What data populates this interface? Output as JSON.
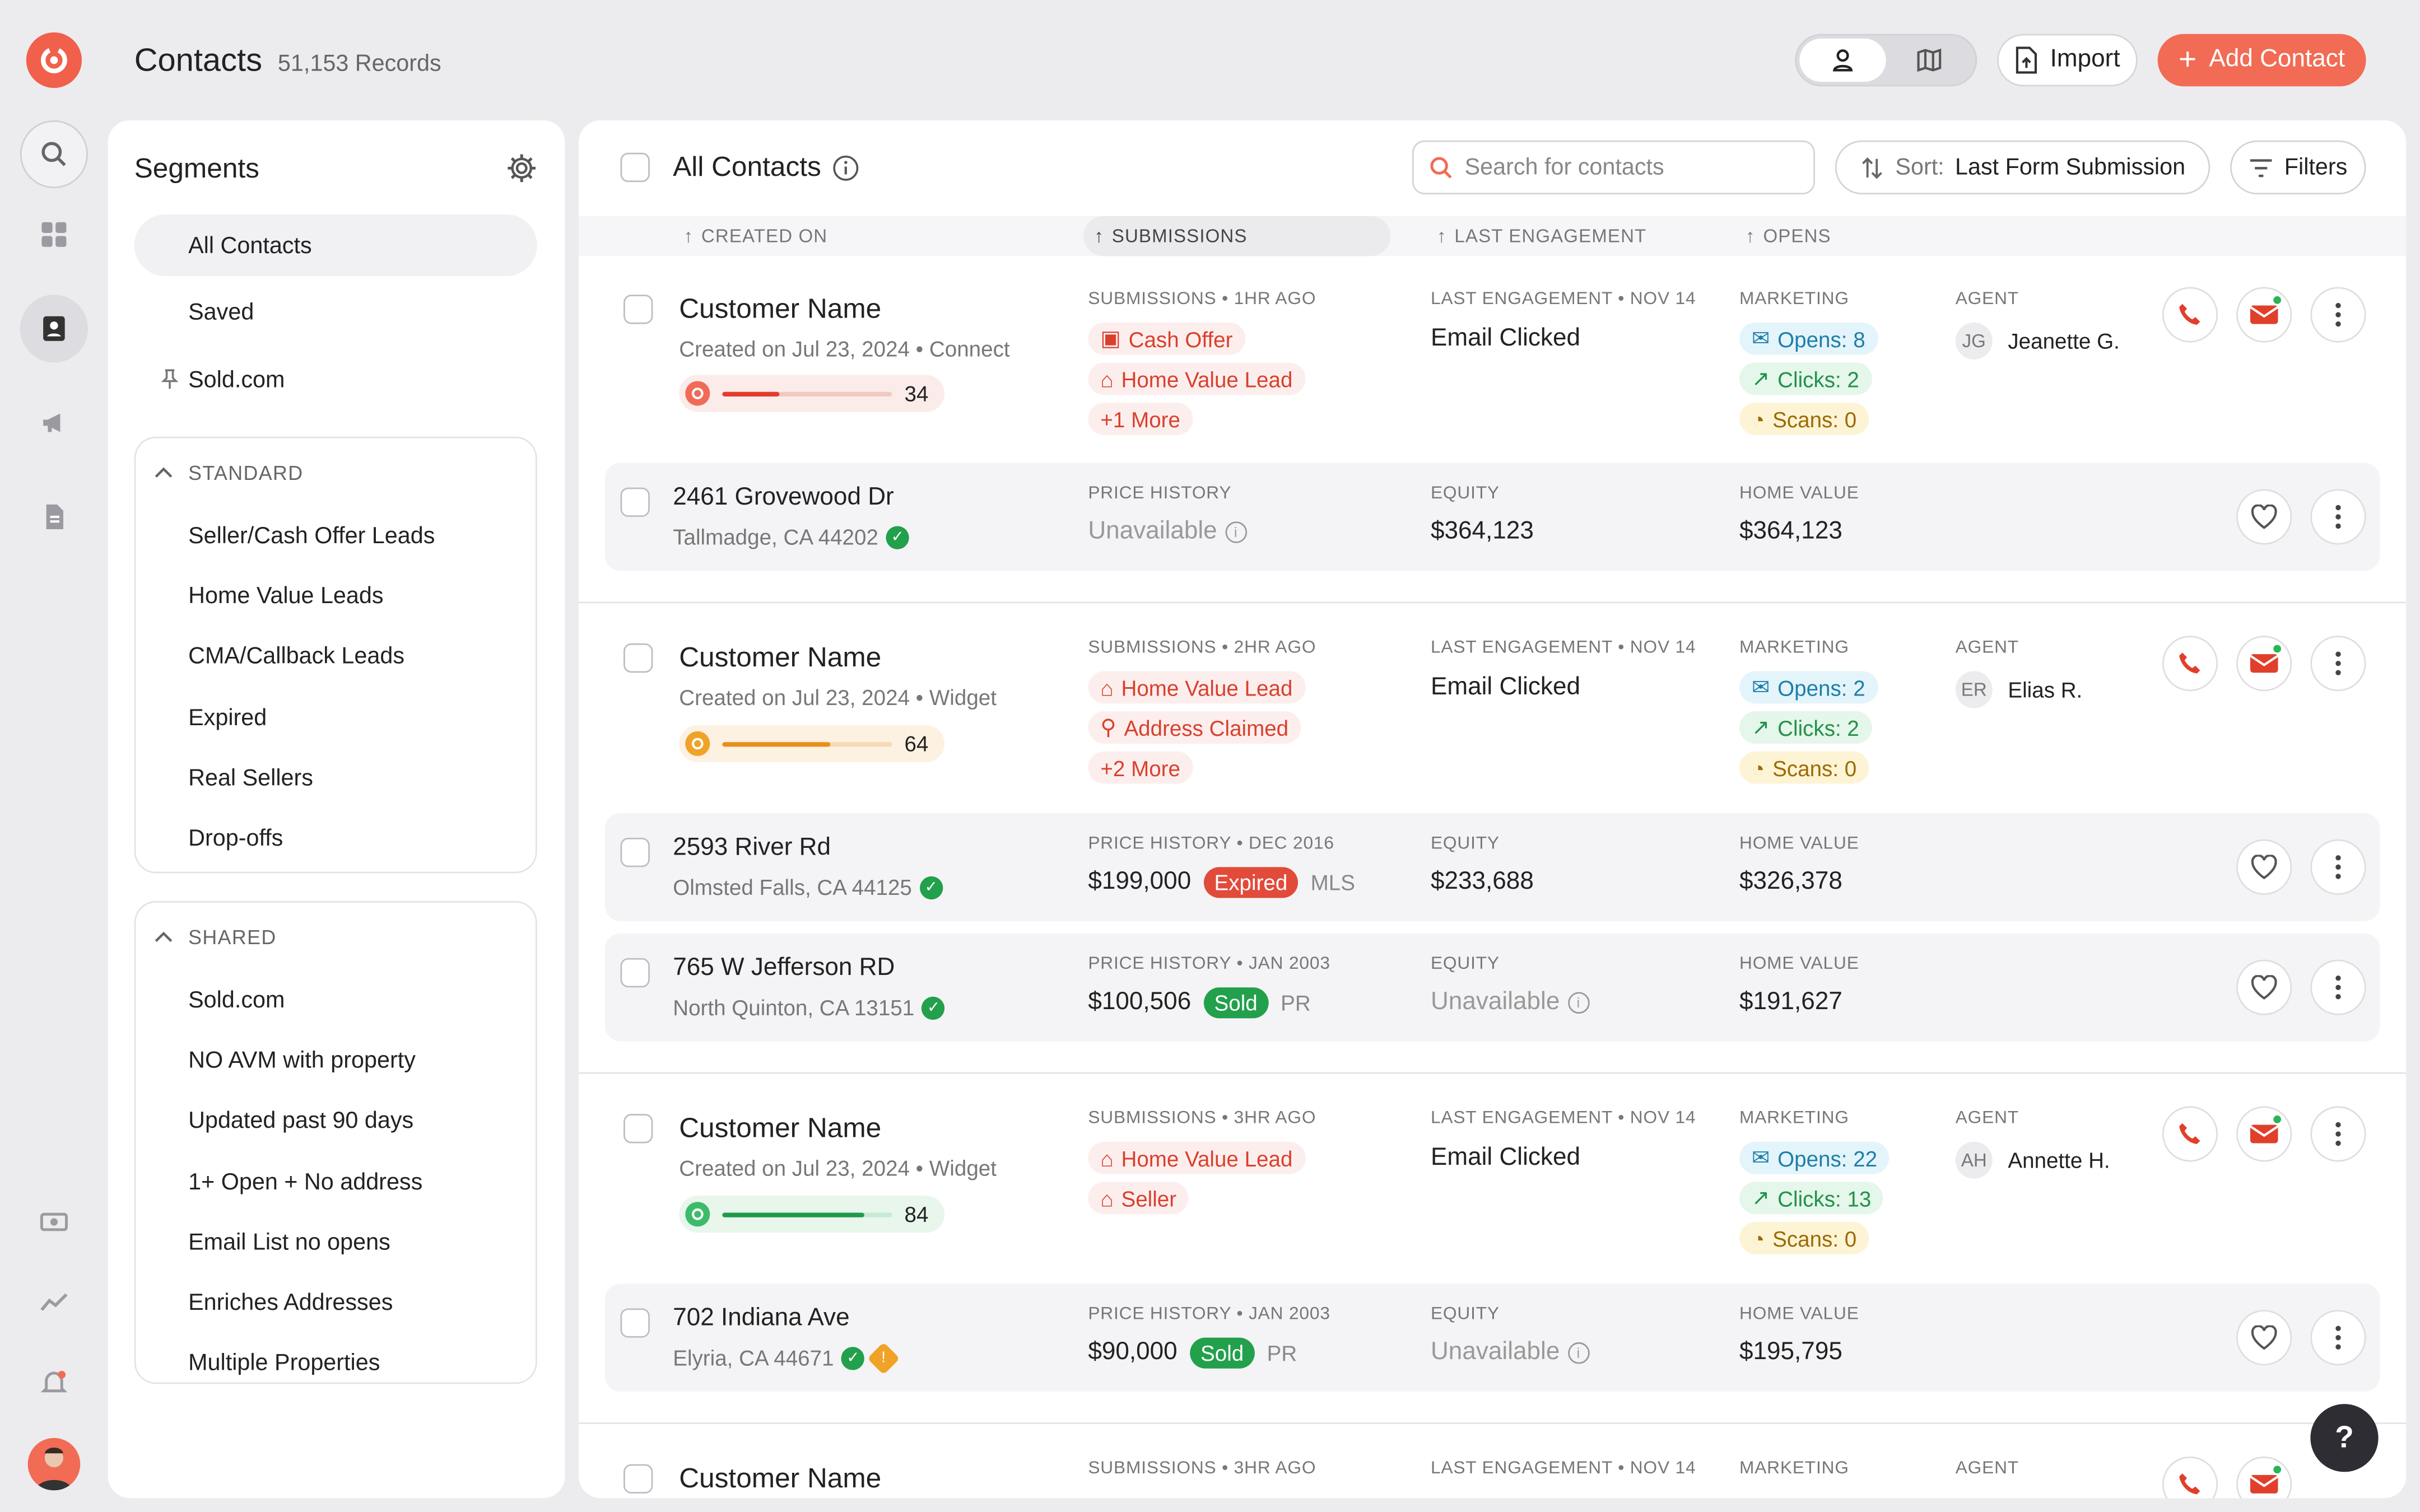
{
  "header": {
    "title": "Contacts",
    "records": "51,153 Records",
    "import_label": "Import",
    "add_label": "Add Contact"
  },
  "segments": {
    "title": "Segments",
    "top": [
      {
        "label": "All Contacts"
      },
      {
        "label": "Saved"
      },
      {
        "label": "Sold.com"
      }
    ],
    "standard": {
      "header": "STANDARD",
      "items": [
        "Seller/Cash Offer Leads",
        "Home Value Leads",
        "CMA/Callback Leads",
        "Expired",
        "Real Sellers",
        "Drop-offs"
      ]
    },
    "shared": {
      "header": "SHARED",
      "items": [
        "Sold.com",
        "NO AVM with property",
        "Updated past 90 days",
        "1+ Open + No address",
        "Email List no opens",
        "Enriches Addresses",
        "Multiple Properties"
      ]
    }
  },
  "main": {
    "title": "All Contacts",
    "search_placeholder": "Search for contacts",
    "sort_prefix": "Sort:",
    "sort_value": "Last Form Submission",
    "filters_label": "Filters",
    "columns": [
      "CREATED ON",
      "SUBMISSIONS",
      "LAST ENGAGEMENT",
      "OPENS"
    ]
  },
  "contacts": [
    {
      "name": "Customer Name",
      "created": "Created on Jul 23, 2024 • Connect",
      "score": "34",
      "score_fraction": 0.34,
      "sub_header": "SUBMISSIONS • 1HR AGO",
      "subs": [
        "Cash Offer",
        "Home Value Lead",
        "+1 More"
      ],
      "eng_header": "LAST ENGAGEMENT • NOV 14",
      "eng": "Email Clicked",
      "mkt_header": "MARKETING",
      "opens": "Opens: 8",
      "clicks": "Clicks: 2",
      "scans": "Scans: 0",
      "agent_header": "AGENT",
      "agent_initials": "JG",
      "agent": "Jeanette G."
    },
    {
      "name": "Customer Name",
      "created": "Created on Jul 23, 2024 • Widget",
      "score": "64",
      "score_fraction": 0.64,
      "sub_header": "SUBMISSIONS • 2HR AGO",
      "subs": [
        "Home Value Lead",
        "Address Claimed",
        "+2 More"
      ],
      "eng_header": "LAST ENGAGEMENT • NOV 14",
      "eng": "Email Clicked",
      "mkt_header": "MARKETING",
      "opens": "Opens: 2",
      "clicks": "Clicks: 2",
      "scans": "Scans: 0",
      "agent_header": "AGENT",
      "agent_initials": "ER",
      "agent": "Elias R."
    },
    {
      "name": "Customer Name",
      "created": "Created on Jul 23, 2024 • Widget",
      "score": "84",
      "score_fraction": 0.84,
      "sub_header": "SUBMISSIONS • 3HR AGO",
      "subs": [
        "Home Value Lead",
        "Seller"
      ],
      "eng_header": "LAST ENGAGEMENT • NOV 14",
      "eng": "Email Clicked",
      "mkt_header": "MARKETING",
      "opens": "Opens: 22",
      "clicks": "Clicks: 13",
      "scans": "Scans: 0",
      "agent_header": "AGENT",
      "agent_initials": "AH",
      "agent": "Annette H."
    },
    {
      "name": "Customer Name",
      "sub_header": "SUBMISSIONS • 3HR AGO",
      "eng_header": "LAST ENGAGEMENT • NOV 14",
      "mkt_header": "MARKETING",
      "agent_header": "AGENT"
    }
  ],
  "properties": [
    {
      "addr": "2461 Grovewood Dr",
      "city": "Tallmadge, CA 44202",
      "ph_header": "PRICE HISTORY",
      "ph": "Unavailable",
      "eq_header": "EQUITY",
      "eq": "$364,123",
      "hv_header": "HOME VALUE",
      "hv": "$364,123"
    },
    {
      "addr": "2593 River Rd",
      "city": "Olmsted Falls, CA 44125",
      "ph_header": "PRICE HISTORY • DEC 2016",
      "ph": "$199,000",
      "badge": "Expired",
      "src": "MLS",
      "eq_header": "EQUITY",
      "eq": "$233,688",
      "hv_header": "HOME VALUE",
      "hv": "$326,378"
    },
    {
      "addr": "765 W Jefferson RD",
      "city": "North Quinton, CA 13151",
      "ph_header": "PRICE HISTORY • JAN 2003",
      "ph": "$100,506",
      "badge": "Sold",
      "src": "PR",
      "eq_header": "EQUITY",
      "eq": "Unavailable",
      "hv_header": "HOME VALUE",
      "hv": "$191,627"
    },
    {
      "addr": "702 Indiana Ave",
      "city": "Elyria, CA 44671",
      "ph_header": "PRICE HISTORY • JAN 2003",
      "ph": "$90,000",
      "badge": "Sold",
      "src": "PR",
      "eq_header": "EQUITY",
      "eq": "Unavailable",
      "hv_header": "HOME VALUE",
      "hv": "$195,795"
    }
  ],
  "help_label": "?",
  "colors": {
    "accent": "#f26b54",
    "danger": "#d9402b",
    "success": "#23914a",
    "expired": "#e24a3a"
  }
}
